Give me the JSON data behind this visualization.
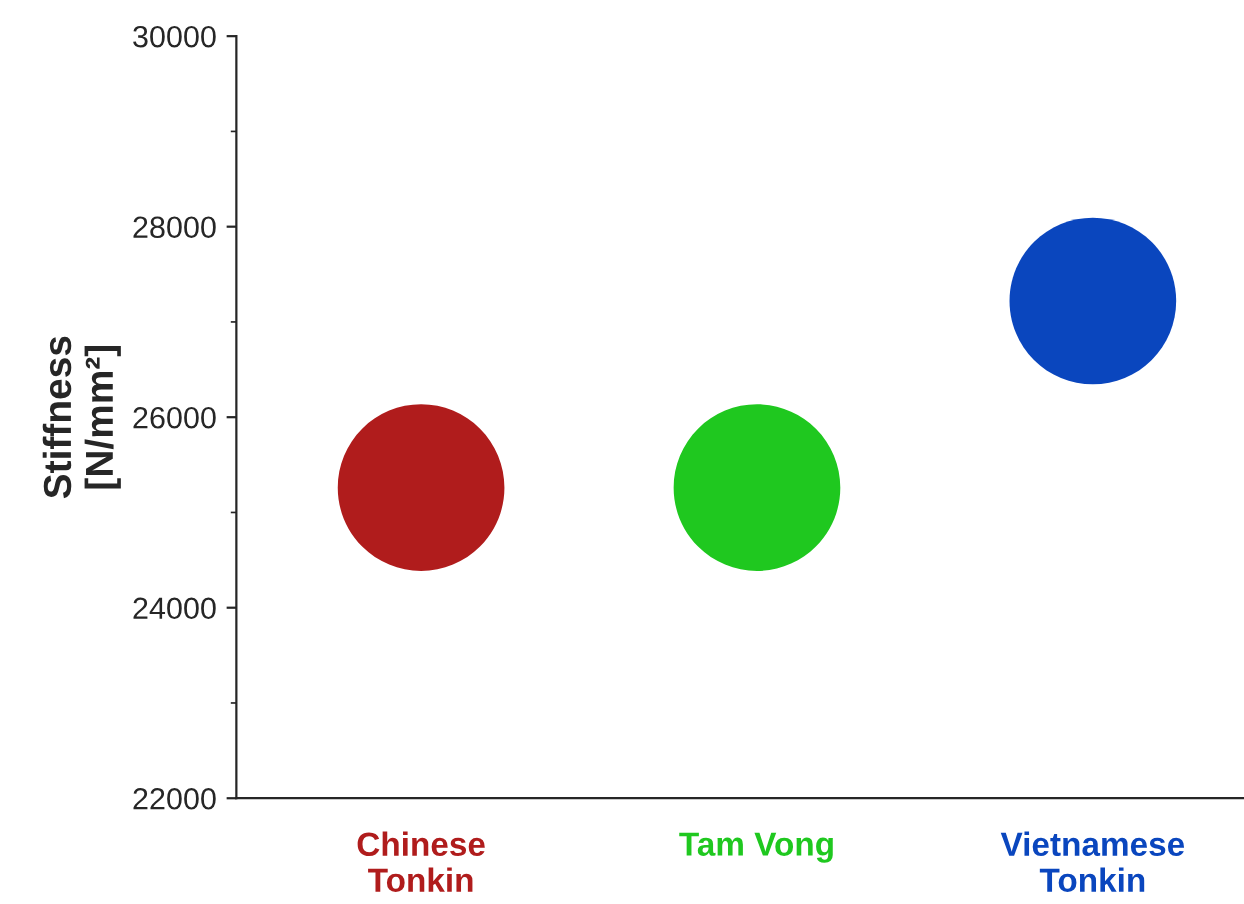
{
  "chart_data": {
    "type": "scatter",
    "ylabel": "Stiffness\n[N/mm²]",
    "categories": [
      "Chinese\nTonkin",
      "Tam Vong",
      "Vietnamese\nTonkin"
    ],
    "values": [
      25260,
      25260,
      27220
    ],
    "colors": [
      "#b01c1c",
      "#1fc81f",
      "#0a46be"
    ],
    "ylim": [
      22000,
      30000
    ],
    "yticks": [
      22000,
      24000,
      26000,
      28000,
      30000
    ],
    "grid": false,
    "legend": false,
    "marker": "circle"
  }
}
